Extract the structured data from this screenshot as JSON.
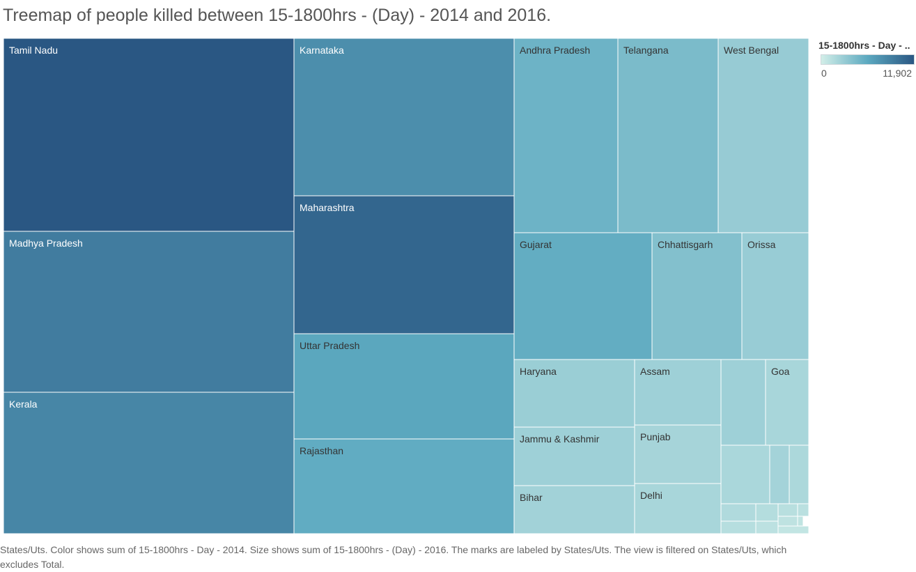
{
  "title": "Treemap of people killed between 15-1800hrs - (Day) - 2014 and 2016.",
  "legend": {
    "title": "15-1800hrs - Day - ..",
    "min_label": "0",
    "max_label": "11,902",
    "color_low": "#d2eee8",
    "color_high": "#2a5783"
  },
  "footnote": "States/Uts.  Color shows sum of 15-1800hrs - Day - 2014.  Size shows sum of 15-1800hrs - (Day) - 2016.  The marks are labeled by States/Uts. The view is filtered on States/Uts, which excludes Total.",
  "chart_data": {
    "type": "treemap",
    "color_measure": "15-1800hrs - Day - 2014",
    "size_measure": "15-1800hrs - (Day) - 2016",
    "color_range": [
      0,
      11902
    ],
    "items": [
      {
        "label": "Tamil Nadu",
        "color_value": 11902
      },
      {
        "label": "Madhya Pradesh",
        "color_value": 9200
      },
      {
        "label": "Kerala",
        "color_value": 8500
      },
      {
        "label": "Karnataka",
        "color_value": 7900
      },
      {
        "label": "Maharashtra",
        "color_value": 10800
      },
      {
        "label": "Uttar Pradesh",
        "color_value": 6100
      },
      {
        "label": "Rajasthan",
        "color_value": 5700
      },
      {
        "label": "Andhra Pradesh",
        "color_value": 5100
      },
      {
        "label": "Telangana",
        "color_value": 4400
      },
      {
        "label": "West Bengal",
        "color_value": 3000
      },
      {
        "label": "Gujarat",
        "color_value": 5600
      },
      {
        "label": "Chhattisgarh",
        "color_value": 4000
      },
      {
        "label": "Orissa",
        "color_value": 2900
      },
      {
        "label": "Haryana",
        "color_value": 2800
      },
      {
        "label": "Assam",
        "color_value": 2600
      },
      {
        "label": "Goa",
        "color_value": 2100
      },
      {
        "label": "Jammu & Kashmir",
        "color_value": 2600
      },
      {
        "label": "Punjab",
        "color_value": 2200
      },
      {
        "label": "Bihar",
        "color_value": 2400
      },
      {
        "label": "Delhi",
        "color_value": 2100
      },
      {
        "label": "",
        "color_value": 2600
      },
      {
        "label": "",
        "color_value": 2000
      },
      {
        "label": "",
        "color_value": 2300
      },
      {
        "label": "",
        "color_value": 1900
      },
      {
        "label": "",
        "color_value": 1700
      },
      {
        "label": "",
        "color_value": 1500
      },
      {
        "label": "",
        "color_value": 1300
      },
      {
        "label": "",
        "color_value": 1200
      },
      {
        "label": "",
        "color_value": 1400
      },
      {
        "label": "",
        "color_value": 1100
      },
      {
        "label": "",
        "color_value": 1000
      },
      {
        "label": "",
        "color_value": 900
      },
      {
        "label": "",
        "color_value": 800
      }
    ]
  }
}
